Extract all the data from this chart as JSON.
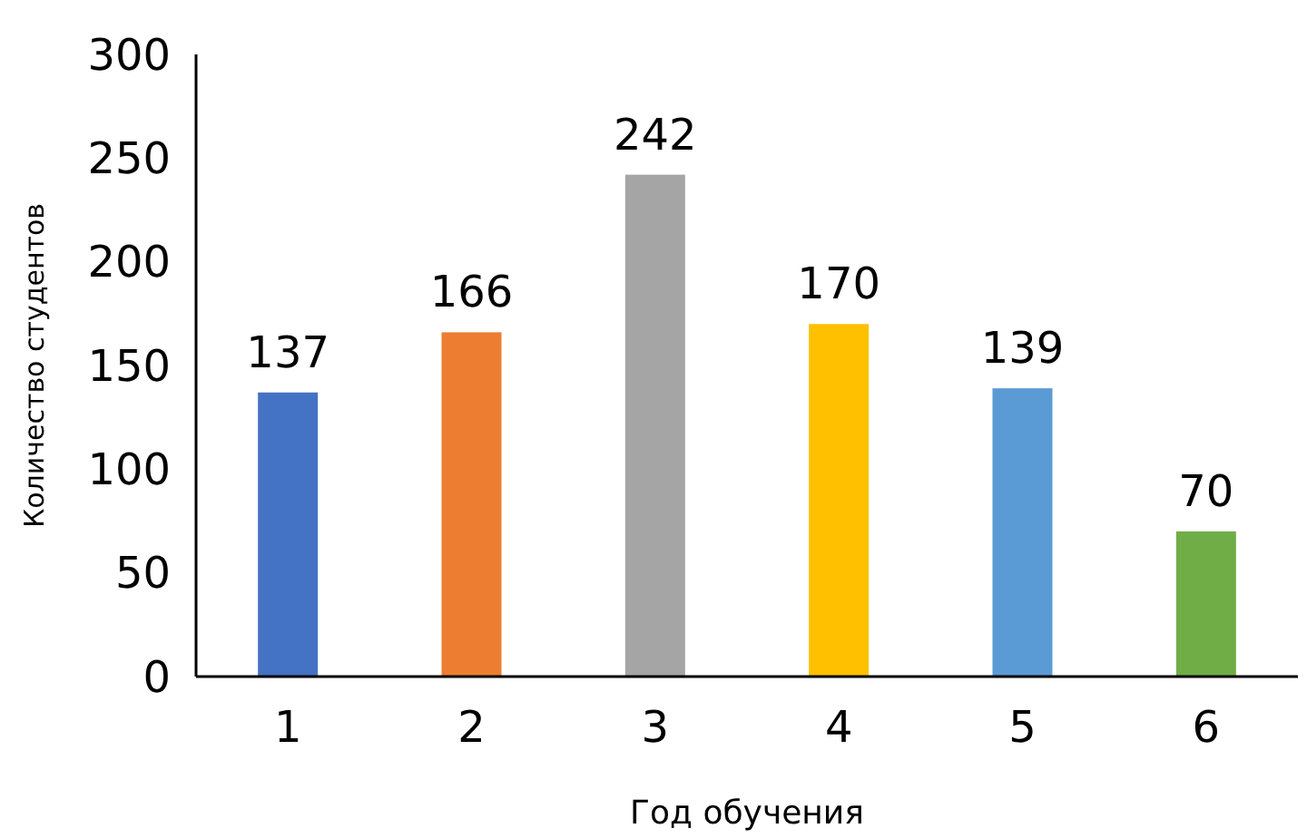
{
  "chart_data": {
    "type": "bar",
    "xlabel": "Год обучения",
    "ylabel": "Количество студентов",
    "categories": [
      "1",
      "2",
      "3",
      "4",
      "5",
      "6"
    ],
    "values": [
      137,
      166,
      242,
      170,
      139,
      70
    ],
    "colors": [
      "#4472c4",
      "#ed7d31",
      "#a5a5a5",
      "#ffc000",
      "#5b9bd5",
      "#70ad47"
    ],
    "ylim": [
      0,
      300
    ],
    "yticks": [
      0,
      50,
      100,
      150,
      200,
      250,
      300
    ],
    "data_labels": true,
    "grid": false
  }
}
